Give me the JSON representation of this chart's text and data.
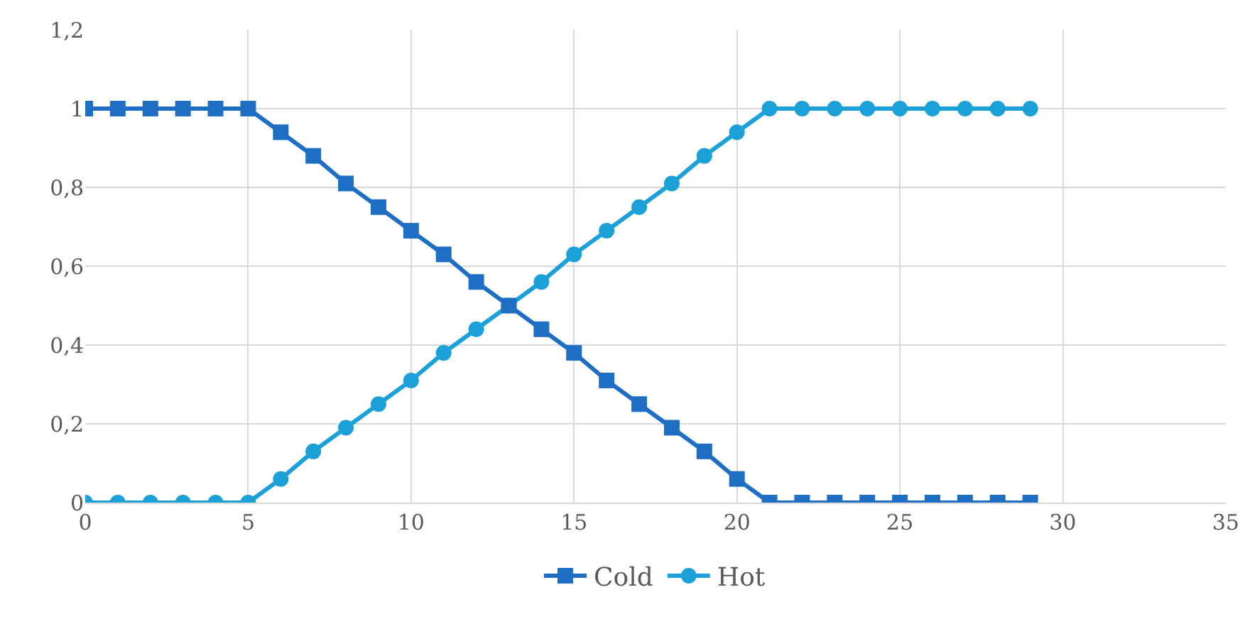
{
  "chart_data": {
    "type": "line",
    "x": [
      0,
      1,
      2,
      3,
      4,
      5,
      6,
      7,
      8,
      9,
      10,
      11,
      12,
      13,
      14,
      15,
      16,
      17,
      18,
      19,
      20,
      21,
      22,
      23,
      24,
      25,
      26,
      27,
      28,
      29
    ],
    "series": [
      {
        "name": "Cold",
        "color": "#1e6fc4",
        "marker": "square",
        "values": [
          1,
          1,
          1,
          1,
          1,
          1,
          0.94,
          0.88,
          0.81,
          0.75,
          0.69,
          0.63,
          0.56,
          0.5,
          0.44,
          0.38,
          0.31,
          0.25,
          0.19,
          0.13,
          0.06,
          0,
          0,
          0,
          0,
          0,
          0,
          0,
          0,
          0
        ]
      },
      {
        "name": "Hot",
        "color": "#1ca0d8",
        "marker": "circle",
        "values": [
          0,
          0,
          0,
          0,
          0,
          0,
          0.06,
          0.13,
          0.19,
          0.25,
          0.31,
          0.38,
          0.44,
          0.5,
          0.56,
          0.63,
          0.69,
          0.75,
          0.81,
          0.88,
          0.94,
          1,
          1,
          1,
          1,
          1,
          1,
          1,
          1,
          1
        ]
      }
    ],
    "xlim": [
      0,
      35
    ],
    "xticks": [
      0,
      5,
      10,
      15,
      20,
      25,
      30,
      35
    ],
    "ylim": [
      0,
      1.2
    ],
    "yticks": [
      0,
      {
        "value": 0.2,
        "label": "0,2"
      },
      {
        "value": 0.4,
        "label": "0,4"
      },
      {
        "value": 0.6,
        "label": "0,6"
      },
      {
        "value": 0.8,
        "label": "0,8"
      },
      1,
      {
        "value": 1.2,
        "label": "1,2"
      }
    ],
    "grid": true,
    "legend": "bottom",
    "line_style": "solid"
  }
}
